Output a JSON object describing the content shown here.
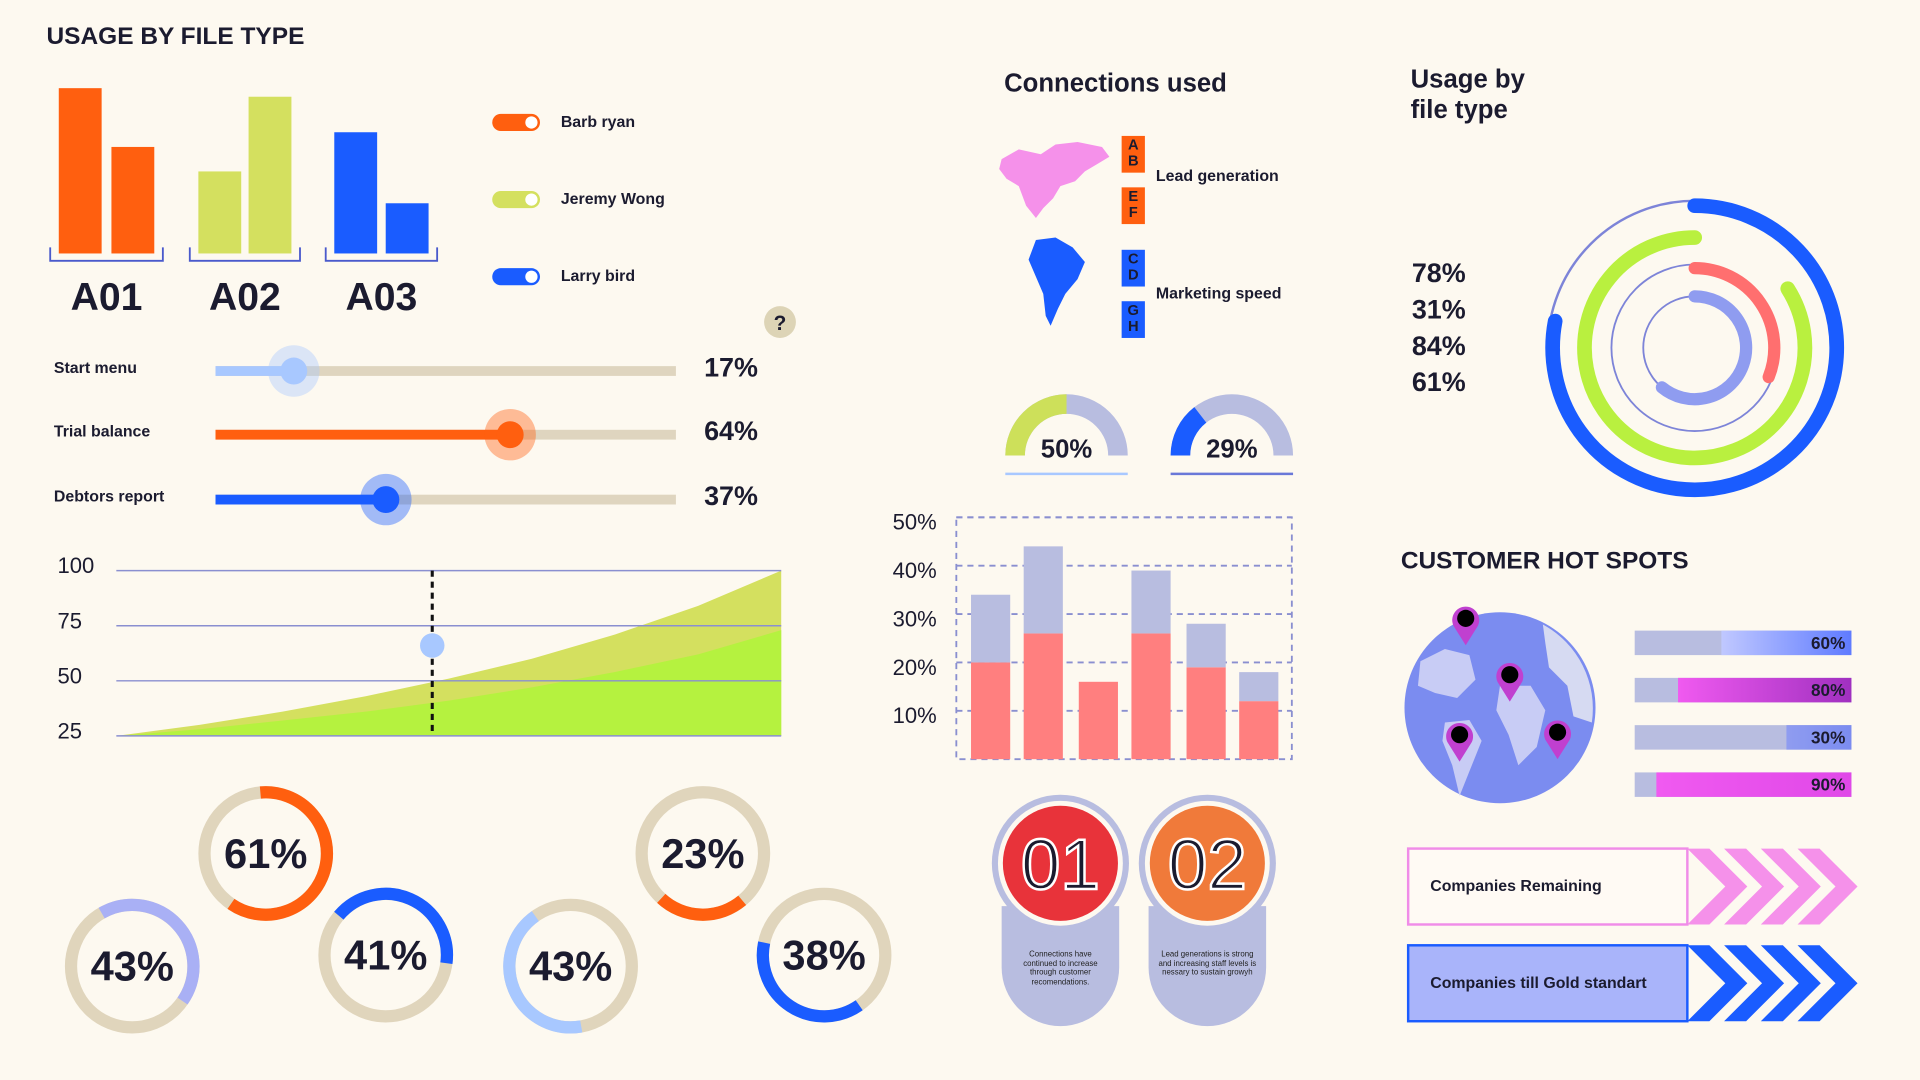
{
  "bar_chart": {
    "title": "USAGE BY FILE TYPE",
    "categories": [
      "A01",
      "A02",
      "A03"
    ],
    "values": [
      [
        135,
        87
      ],
      [
        67,
        128
      ],
      [
        99,
        41
      ]
    ],
    "colors": [
      "#ff5f0f",
      "#d4e05f",
      "#1a5cff"
    ],
    "ylim": [
      0,
      140
    ]
  },
  "legend": [
    {
      "name": "Barb ryan",
      "color": "#ff5f0f"
    },
    {
      "name": "Jeremy Wong",
      "color": "#d4e05f"
    },
    {
      "name": "Larry bird",
      "color": "#1a5cff"
    }
  ],
  "help": "?",
  "sliders": [
    {
      "label": "Start menu",
      "value": 17,
      "value_label": "17%",
      "color": "#a8c8ff"
    },
    {
      "label": "Trial balance",
      "value": 64,
      "value_label": "64%",
      "color": "#ff5f0f"
    },
    {
      "label": "Debtors report",
      "value": 37,
      "value_label": "37%",
      "color": "#1a5cff"
    }
  ],
  "area_chart": {
    "type": "area",
    "categories": [
      null,
      null,
      null,
      null,
      null,
      null,
      null,
      null,
      null
    ],
    "ylim": [
      25,
      100
    ],
    "yticks": [
      100,
      75,
      50,
      25
    ],
    "grid": true,
    "series": [
      {
        "color": "#d4e05f",
        "values": [
          25,
          30,
          36,
          43,
          51,
          60,
          71,
          84,
          100
        ]
      },
      {
        "color": "#b5f23f",
        "values": [
          25,
          28,
          32,
          36,
          41,
          47,
          54,
          62,
          73
        ]
      }
    ],
    "marker": 66
  },
  "donuts": [
    {
      "value": 61,
      "value_label": "61%",
      "color": "#ff5f0f"
    },
    {
      "value": 43,
      "value_label": "43%",
      "color": "#a9b0f5"
    },
    {
      "value": 41,
      "value_label": "41%",
      "color": "#1a5cff"
    },
    {
      "value": 23,
      "value_label": "23%",
      "color": "#ff5f0f"
    },
    {
      "value": 43,
      "value_label": "43%",
      "color": "#a8c8ff"
    },
    {
      "value": 38,
      "value_label": "38%",
      "color": "#1a5cff"
    }
  ],
  "connections": {
    "title": "Connections used",
    "groups": [
      {
        "label": "Lead generation",
        "color": "#ff5f0f",
        "letters": [
          [
            "A",
            "B"
          ],
          [
            "E",
            "F"
          ]
        ]
      },
      {
        "label": "Marketing speed",
        "color": "#1a5cff",
        "letters": [
          [
            "C",
            "D"
          ],
          [
            "G",
            "H"
          ]
        ]
      }
    ]
  },
  "gauges": [
    {
      "value": 50,
      "value_label": "50%",
      "color": "#cde05a"
    },
    {
      "value": 29,
      "value_label": "29%",
      "color": "#1a5cff"
    }
  ],
  "stacked_chart": {
    "type": "bar",
    "stacked": true,
    "categories": [
      null,
      null,
      null,
      null,
      null,
      null
    ],
    "ylim": [
      0,
      50
    ],
    "yticks": [
      {
        "value": 50,
        "label": "50%"
      },
      {
        "value": 40,
        "label": "40%"
      },
      {
        "value": 30,
        "label": "30%"
      },
      {
        "value": 20,
        "label": "20%"
      },
      {
        "value": 10,
        "label": "10%"
      }
    ],
    "series": [
      {
        "color": "#ff7f7f",
        "values": [
          20,
          26,
          16,
          26,
          19,
          12
        ]
      },
      {
        "color": "#b8bde0",
        "values": [
          14,
          18,
          0,
          13,
          9,
          6
        ]
      }
    ]
  },
  "steps": [
    {
      "number": "01",
      "color": "#e8333a",
      "text": "Connections have continued to increase through customer recomendations."
    },
    {
      "number": "02",
      "color": "#f07a3a",
      "text": "Lead generations is strong and increasing staff levels is nessary to sustain growyh"
    }
  ],
  "rings": {
    "title": [
      "Usage by",
      "file type"
    ],
    "items": [
      {
        "value": 78,
        "value_label": "78%",
        "label_color": "#8f9cf0",
        "color": "#1a5cff"
      },
      {
        "value": 31,
        "value_label": "31%",
        "label_color": "#f28a6a",
        "color": "#ff6f6f"
      },
      {
        "value": 84,
        "value_label": "84%",
        "label_color": "#e860e0",
        "color": "#b9f03f"
      },
      {
        "value": 61,
        "value_label": "61%",
        "label_color": "#8f9cf0",
        "color": "#8f9cf0"
      }
    ]
  },
  "hot_spots": {
    "title": "CUSTOMER HOT SPOTS",
    "bars": [
      {
        "value": 60,
        "value_label": "60%",
        "colors": [
          "#c0c8ff",
          "#5f7bff"
        ]
      },
      {
        "value": 80,
        "value_label": "80%",
        "colors": [
          "#f05af0",
          "#a030c0"
        ]
      },
      {
        "value": 30,
        "value_label": "30%",
        "colors": [
          "#8f9cf0",
          "#7b8cf0"
        ]
      },
      {
        "value": 90,
        "value_label": "90%",
        "colors": [
          "#f05af0",
          "#e048e8"
        ]
      }
    ]
  },
  "banners": [
    {
      "text": "Companies Remaining"
    },
    {
      "text": "Companies till Gold standart"
    }
  ]
}
